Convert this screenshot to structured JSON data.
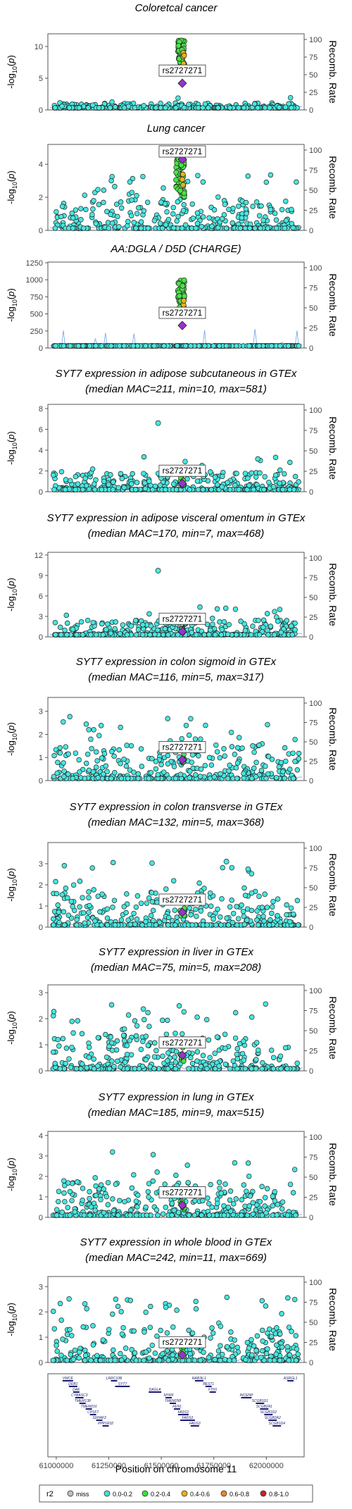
{
  "xaxis": {
    "title": "Position on chromosome 11",
    "ticks": [
      61000000,
      61250000,
      61500000,
      61750000,
      62000000
    ],
    "tick_labels": [
      "61000000",
      "61250000",
      "61500000",
      "61750000",
      "62000000"
    ],
    "xlim": [
      60960000,
      62180000
    ]
  },
  "legend": {
    "title": "r2",
    "items": [
      {
        "label": "miss",
        "color": "#BEBEBE"
      },
      {
        "label": "0.0-0.2",
        "color": "#40E0D0"
      },
      {
        "label": "0.2-0.4",
        "color": "#3ADF3A"
      },
      {
        "label": "0.4-0.6",
        "color": "#E6B01E"
      },
      {
        "label": "0.6-0.8",
        "color": "#E8862A"
      },
      {
        "label": "0.8-1.0",
        "color": "#CC2222"
      }
    ]
  },
  "chart_data": [
    {
      "type": "scatter",
      "title": "Coloretcal cancer",
      "subtitle": "",
      "title_italic_prefix": "",
      "ylabel": "-log10(p)",
      "y2label": "Recomb. Rate",
      "ylim": [
        0,
        12
      ],
      "yticks": [
        0,
        5,
        10
      ],
      "ytick_labels": [
        "0",
        "5",
        "10"
      ],
      "y2ticks": [
        0,
        25,
        50,
        75,
        100
      ],
      "lead_snp": "rs2727271",
      "lead_pos": 61600000,
      "lead_y": 4.2,
      "peak": {
        "center": 61595000,
        "width": 30000,
        "y_min": 6,
        "y_max": 11
      },
      "background": {
        "max": 2,
        "spike_density": 0.05
      },
      "recomb_spikes": false
    },
    {
      "type": "scatter",
      "title": "Lung cancer",
      "subtitle": "",
      "title_italic_prefix": "",
      "ylabel": "-log10(p)",
      "y2label": "Recomb. Rate",
      "ylim": [
        0,
        5.2
      ],
      "yticks": [
        0,
        2,
        4
      ],
      "ytick_labels": [
        "0",
        "2",
        "4"
      ],
      "y2ticks": [
        0,
        25,
        50,
        75,
        100
      ],
      "lead_snp": "rs2727271",
      "lead_pos": 61600000,
      "lead_y": 4.3,
      "peak": {
        "center": 61590000,
        "width": 40000,
        "y_min": 2,
        "y_max": 4.4
      },
      "background": {
        "max": 3.4,
        "spike_density": 0.35
      },
      "recomb_spikes": false
    },
    {
      "type": "scatter",
      "title": "AA:DGLA / D5D (CHARGE)",
      "subtitle": "",
      "title_italic_prefix": "",
      "ylabel": "-log10(p)",
      "y2label": "Recomb. Rate",
      "ylim": [
        0,
        1260
      ],
      "yticks": [
        0,
        250,
        500,
        750,
        1000,
        1250
      ],
      "ytick_labels": [
        "0",
        "250",
        "500",
        "750",
        "1000",
        "1250"
      ],
      "y2ticks": [
        0,
        25,
        50,
        75,
        100
      ],
      "lead_snp": "rs2727271",
      "lead_pos": 61600000,
      "lead_y": 330,
      "peak": {
        "center": 61595000,
        "width": 30000,
        "y_min": 500,
        "y_max": 1000
      },
      "background": {
        "max": 60,
        "spike_density": 0.02
      },
      "recomb_spikes": true
    },
    {
      "type": "scatter",
      "title": "SYT7 expression in adipose subcutaneous in GTEx",
      "subtitle": "(median MAC=211, min=10, max=581)",
      "title_italic_prefix": "SYT7",
      "ylabel": "-log10(p)",
      "y2label": "Recomb. Rate",
      "ylim": [
        0,
        8.4
      ],
      "yticks": [
        0,
        2,
        4,
        6,
        8
      ],
      "ytick_labels": [
        "0",
        "2",
        "4",
        "6",
        "8"
      ],
      "y2ticks": [
        0,
        25,
        50,
        75,
        100
      ],
      "lead_snp": "rs2727271",
      "lead_pos": 61600000,
      "lead_y": 0.8,
      "peak": null,
      "background": {
        "max": 3.5,
        "spike_density": 0.15
      },
      "recomb_spikes": false,
      "extra_points": [
        [
          61485000,
          6.6
        ]
      ]
    },
    {
      "type": "scatter",
      "title": "SYT7 expression in adipose visceral omentum in GTEx",
      "subtitle": "(median MAC=170, min=7, max=468)",
      "title_italic_prefix": "SYT7",
      "ylabel": "-log10(p)",
      "y2label": "Recomb. Rate",
      "ylim": [
        0,
        12.4
      ],
      "yticks": [
        0,
        3,
        6,
        9,
        12
      ],
      "ytick_labels": [
        "0",
        "3",
        "6",
        "9",
        "12"
      ],
      "y2ticks": [
        0,
        25,
        50,
        75,
        100
      ],
      "lead_snp": "rs2727271",
      "lead_pos": 61600000,
      "lead_y": 0.8,
      "peak": null,
      "background": {
        "max": 4.5,
        "spike_density": 0.12
      },
      "recomb_spikes": false,
      "extra_points": [
        [
          61485000,
          9.7
        ]
      ]
    },
    {
      "type": "scatter",
      "title": "SYT7 expression in colon sigmoid in GTEx",
      "subtitle": "(median MAC=116, min=5, max=317)",
      "title_italic_prefix": "SYT7",
      "ylabel": "-log10(p)",
      "y2label": "Recomb. Rate",
      "ylim": [
        0,
        3.6
      ],
      "yticks": [
        0,
        1,
        2,
        3
      ],
      "ytick_labels": [
        "0",
        "1",
        "2",
        "3"
      ],
      "y2ticks": [
        0,
        25,
        50,
        75,
        100
      ],
      "lead_snp": "rs2727271",
      "lead_pos": 61600000,
      "lead_y": 0.9,
      "peak": null,
      "background": {
        "max": 2.9,
        "spike_density": 0.45
      },
      "recomb_spikes": false,
      "extra_points": []
    },
    {
      "type": "scatter",
      "title": "SYT7 expression in colon transverse in GTEx",
      "subtitle": "(median MAC=132, min=5, max=368)",
      "title_italic_prefix": "SYT7",
      "ylabel": "-log10(p)",
      "y2label": "Recomb. Rate",
      "ylim": [
        0,
        4
      ],
      "yticks": [
        0,
        1,
        2,
        3
      ],
      "ytick_labels": [
        "0",
        "1",
        "2",
        "3"
      ],
      "y2ticks": [
        0,
        25,
        50,
        75,
        100
      ],
      "lead_snp": "rs2727271",
      "lead_pos": 61600000,
      "lead_y": 0.7,
      "peak": null,
      "background": {
        "max": 3.1,
        "spike_density": 0.4
      },
      "recomb_spikes": false,
      "extra_points": [
        [
          61810000,
          3.1
        ]
      ]
    },
    {
      "type": "scatter",
      "title": "SYT7 expression in liver in GTEx",
      "subtitle": "(median MAC=75, min=5, max=208)",
      "title_italic_prefix": "SYT7",
      "ylabel": "-log10(p)",
      "y2label": "Recomb. Rate",
      "ylim": [
        0,
        3.3
      ],
      "yticks": [
        0,
        1,
        2,
        3
      ],
      "ytick_labels": [
        "0",
        "1",
        "2",
        "3"
      ],
      "y2ticks": [
        0,
        25,
        50,
        75,
        100
      ],
      "lead_snp": "rs2727271",
      "lead_pos": 61600000,
      "lead_y": 0.6,
      "peak": null,
      "background": {
        "max": 2.6,
        "spike_density": 0.45
      },
      "recomb_spikes": false,
      "extra_points": []
    },
    {
      "type": "scatter",
      "title": "SYT7 expression in lung in GTEx",
      "subtitle": "(median MAC=185, min=9, max=515)",
      "title_italic_prefix": "SYT7",
      "ylabel": "-log10(p)",
      "y2label": "Recomb. Rate",
      "ylim": [
        0,
        4.2
      ],
      "yticks": [
        0,
        1,
        2,
        3,
        4
      ],
      "ytick_labels": [
        "0",
        "1",
        "2",
        "3",
        "4"
      ],
      "y2ticks": [
        0,
        25,
        50,
        75,
        100
      ],
      "lead_snp": "rs2727271",
      "lead_pos": 61600000,
      "lead_y": 0.6,
      "peak": null,
      "background": {
        "max": 3.3,
        "spike_density": 0.35
      },
      "recomb_spikes": false,
      "extra_points": []
    },
    {
      "type": "scatter",
      "title": "SYT7 expression in whole blood in GTEx",
      "subtitle": "(median MAC=242, min=11, max=669)",
      "title_italic_prefix": "SYT7",
      "ylabel": "-log10(p)",
      "y2label": "Recomb. Rate",
      "ylim": [
        0,
        3.4
      ],
      "yticks": [
        0,
        1,
        2,
        3
      ],
      "ytick_labels": [
        "0",
        "1",
        "2",
        "3"
      ],
      "y2ticks": [
        0,
        25,
        50,
        75,
        100
      ],
      "lead_snp": "rs2727271",
      "lead_pos": 61600000,
      "lead_y": 0.3,
      "peak": null,
      "background": {
        "max": 2.6,
        "spike_density": 0.45
      },
      "recomb_spikes": false,
      "extra_points": []
    }
  ],
  "genes": [
    {
      "name": "VWCE",
      "start": 61030000,
      "end": 61080000
    },
    {
      "name": "DDB1",
      "start": 61060000,
      "end": 61100000
    },
    {
      "name": "DAK",
      "start": 61080000,
      "end": 61110000
    },
    {
      "name": "CYBASC3",
      "start": 61090000,
      "end": 61130000
    },
    {
      "name": "TMEM138",
      "start": 61110000,
      "end": 61140000
    },
    {
      "name": "TMEM216",
      "start": 61140000,
      "end": 61170000
    },
    {
      "name": "CPSF7",
      "start": 61160000,
      "end": 61190000
    },
    {
      "name": "SDHAF2",
      "start": 61190000,
      "end": 61220000
    },
    {
      "name": "PPP1R32",
      "start": 61220000,
      "end": 61250000
    },
    {
      "name": "LRRC10B",
      "start": 61260000,
      "end": 61290000
    },
    {
      "name": "SYT7",
      "start": 61280000,
      "end": 61350000
    },
    {
      "name": "DAGLA",
      "start": 61440000,
      "end": 61500000
    },
    {
      "name": "MYRF",
      "start": 61520000,
      "end": 61550000
    },
    {
      "name": "TMEM258",
      "start": 61540000,
      "end": 61570000
    },
    {
      "name": "FEN1",
      "start": 61560000,
      "end": 61590000
    },
    {
      "name": "FADS1",
      "start": 61580000,
      "end": 61630000
    },
    {
      "name": "FADS2",
      "start": 61590000,
      "end": 61660000
    },
    {
      "name": "FADS3",
      "start": 61640000,
      "end": 61680000
    },
    {
      "name": "RAB3IL1",
      "start": 61660000,
      "end": 61700000
    },
    {
      "name": "BEST1",
      "start": 61710000,
      "end": 61740000
    },
    {
      "name": "FTH1",
      "start": 61730000,
      "end": 61760000
    },
    {
      "name": "INCENP",
      "start": 61880000,
      "end": 61930000
    },
    {
      "name": "SCGB1D1",
      "start": 61950000,
      "end": 61990000
    },
    {
      "name": "SCGB2A1",
      "start": 61970000,
      "end": 62010000
    },
    {
      "name": "SCGB1D2",
      "start": 61990000,
      "end": 62030000
    },
    {
      "name": "SCGB2A2",
      "start": 62010000,
      "end": 62050000
    },
    {
      "name": "SCGB1D4",
      "start": 62030000,
      "end": 62070000
    },
    {
      "name": "ASRGL1",
      "start": 62100000,
      "end": 62130000
    }
  ]
}
